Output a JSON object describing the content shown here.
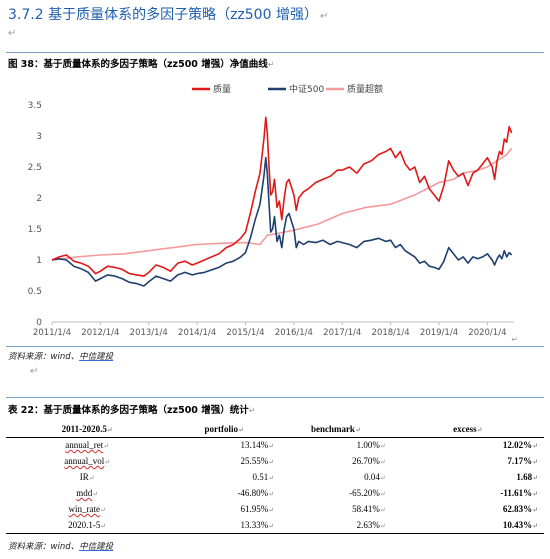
{
  "heading": "3.7.2 基于质量体系的多因子策略（zz500 增强）",
  "para_mark": "↵",
  "figure_caption": "图 38：基于质量体系的多因子策略（zz500 增强）净值曲线",
  "table_caption": "表 22：基于质量体系的多因子策略（zz500 增强）统计",
  "source_text": "资料来源：wind、",
  "source_firm": "中信建投",
  "table": {
    "headers": [
      "2011-2020.5",
      "portfolio",
      "benchmark",
      "excess"
    ],
    "rows": [
      {
        "label": "annual_ret",
        "portfolio": "13.14%",
        "benchmark": "1.00%",
        "excess": "12.02%",
        "wavy": true
      },
      {
        "label": "annual_vol",
        "portfolio": "25.55%",
        "benchmark": "26.70%",
        "excess": "7.17%",
        "wavy": true
      },
      {
        "label": "IR",
        "portfolio": "0.51",
        "benchmark": "0.04",
        "excess": "1.68",
        "wavy": false
      },
      {
        "label": "mdd",
        "portfolio": "-46.80%",
        "benchmark": "-65.20%",
        "excess": "-11.61%",
        "wavy": true
      },
      {
        "label": "win_rate",
        "portfolio": "61.95%",
        "benchmark": "58.41%",
        "excess": "62.83%",
        "wavy": true
      },
      {
        "label": "2020.1-5",
        "portfolio": "13.33%",
        "benchmark": "2.63%",
        "excess": "10.43%",
        "wavy": false
      }
    ]
  },
  "chart_data": {
    "type": "line",
    "ylim": [
      0,
      3.5
    ],
    "yticks": [
      "0",
      "0.5",
      "1",
      "1.5",
      "2",
      "2.5",
      "3",
      "3.5"
    ],
    "xlim": [
      2011.0,
      2020.55
    ],
    "xticks": [
      {
        "label": "2011/1/4",
        "x": 2011.0
      },
      {
        "label": "2012/1/4",
        "x": 2012.0
      },
      {
        "label": "2013/1/4",
        "x": 2013.0
      },
      {
        "label": "2014/1/4",
        "x": 2014.0
      },
      {
        "label": "2015/1/4",
        "x": 2015.0
      },
      {
        "label": "2016/1/4",
        "x": 2016.0
      },
      {
        "label": "2017/1/4",
        "x": 2017.0
      },
      {
        "label": "2018/1/4",
        "x": 2018.0
      },
      {
        "label": "2019/1/4",
        "x": 2019.0
      },
      {
        "label": "2020/1/4",
        "x": 2020.0
      }
    ],
    "legend_position": "top",
    "grid": false,
    "series": [
      {
        "name": "质量",
        "color": "#e01818",
        "x": [
          2011.0,
          2011.15,
          2011.3,
          2011.45,
          2011.6,
          2011.75,
          2011.9,
          2012.0,
          2012.15,
          2012.3,
          2012.45,
          2012.6,
          2012.75,
          2012.9,
          2013.0,
          2013.15,
          2013.3,
          2013.45,
          2013.6,
          2013.75,
          2013.9,
          2014.0,
          2014.15,
          2014.3,
          2014.45,
          2014.6,
          2014.75,
          2014.9,
          2015.0,
          2015.1,
          2015.2,
          2015.3,
          2015.38,
          2015.42,
          2015.45,
          2015.48,
          2015.52,
          2015.56,
          2015.6,
          2015.65,
          2015.7,
          2015.75,
          2015.8,
          2015.85,
          2015.9,
          2016.0,
          2016.05,
          2016.1,
          2016.2,
          2016.3,
          2016.45,
          2016.6,
          2016.75,
          2016.9,
          2017.0,
          2017.15,
          2017.3,
          2017.45,
          2017.6,
          2017.75,
          2017.9,
          2018.0,
          2018.1,
          2018.2,
          2018.3,
          2018.4,
          2018.5,
          2018.6,
          2018.7,
          2018.8,
          2018.9,
          2019.0,
          2019.1,
          2019.2,
          2019.3,
          2019.4,
          2019.5,
          2019.6,
          2019.7,
          2019.8,
          2019.9,
          2020.0,
          2020.1,
          2020.15,
          2020.2,
          2020.25,
          2020.3,
          2020.35,
          2020.4,
          2020.45,
          2020.5
        ],
        "values": [
          1.0,
          1.05,
          1.08,
          0.98,
          0.95,
          0.9,
          0.78,
          0.82,
          0.9,
          0.88,
          0.85,
          0.78,
          0.76,
          0.74,
          0.8,
          0.92,
          0.88,
          0.82,
          0.95,
          0.98,
          0.92,
          0.95,
          1.0,
          1.05,
          1.1,
          1.2,
          1.25,
          1.35,
          1.45,
          1.75,
          2.1,
          2.4,
          2.95,
          3.3,
          3.05,
          2.6,
          2.05,
          2.1,
          2.3,
          1.85,
          1.95,
          1.65,
          2.0,
          2.25,
          2.3,
          2.05,
          1.8,
          2.0,
          2.1,
          2.15,
          2.25,
          2.3,
          2.35,
          2.45,
          2.45,
          2.5,
          2.4,
          2.55,
          2.6,
          2.7,
          2.75,
          2.8,
          2.65,
          2.75,
          2.55,
          2.45,
          2.5,
          2.25,
          2.35,
          2.15,
          2.05,
          1.95,
          2.2,
          2.6,
          2.45,
          2.35,
          2.4,
          2.2,
          2.4,
          2.45,
          2.55,
          2.65,
          2.5,
          2.3,
          2.6,
          2.75,
          2.7,
          2.95,
          2.9,
          3.15,
          3.05
        ]
      },
      {
        "name": "中证500",
        "color": "#1f3f6e",
        "x": [
          2011.0,
          2011.15,
          2011.3,
          2011.45,
          2011.6,
          2011.75,
          2011.9,
          2012.0,
          2012.15,
          2012.3,
          2012.45,
          2012.6,
          2012.75,
          2012.9,
          2013.0,
          2013.15,
          2013.3,
          2013.45,
          2013.6,
          2013.75,
          2013.9,
          2014.0,
          2014.15,
          2014.3,
          2014.45,
          2014.6,
          2014.75,
          2014.9,
          2015.0,
          2015.1,
          2015.2,
          2015.3,
          2015.38,
          2015.42,
          2015.45,
          2015.48,
          2015.52,
          2015.56,
          2015.6,
          2015.65,
          2015.7,
          2015.75,
          2015.8,
          2015.85,
          2015.9,
          2016.0,
          2016.05,
          2016.1,
          2016.2,
          2016.3,
          2016.45,
          2016.6,
          2016.75,
          2016.9,
          2017.0,
          2017.15,
          2017.3,
          2017.45,
          2017.6,
          2017.75,
          2017.9,
          2018.0,
          2018.1,
          2018.2,
          2018.3,
          2018.4,
          2018.5,
          2018.6,
          2018.7,
          2018.8,
          2018.9,
          2019.0,
          2019.1,
          2019.2,
          2019.3,
          2019.4,
          2019.5,
          2019.6,
          2019.7,
          2019.8,
          2019.9,
          2020.0,
          2020.1,
          2020.15,
          2020.2,
          2020.25,
          2020.3,
          2020.35,
          2020.4,
          2020.45,
          2020.5
        ],
        "values": [
          1.0,
          1.02,
          1.0,
          0.9,
          0.86,
          0.8,
          0.66,
          0.7,
          0.76,
          0.74,
          0.7,
          0.64,
          0.62,
          0.58,
          0.65,
          0.74,
          0.7,
          0.66,
          0.76,
          0.8,
          0.76,
          0.78,
          0.8,
          0.84,
          0.88,
          0.95,
          0.98,
          1.05,
          1.12,
          1.35,
          1.65,
          1.9,
          2.35,
          2.65,
          2.4,
          2.0,
          1.45,
          1.5,
          1.7,
          1.3,
          1.4,
          1.2,
          1.5,
          1.7,
          1.75,
          1.5,
          1.2,
          1.3,
          1.25,
          1.3,
          1.28,
          1.32,
          1.25,
          1.3,
          1.28,
          1.25,
          1.2,
          1.3,
          1.32,
          1.35,
          1.3,
          1.32,
          1.2,
          1.25,
          1.15,
          1.1,
          1.05,
          0.95,
          0.98,
          0.9,
          0.88,
          0.85,
          0.98,
          1.2,
          1.1,
          1.0,
          1.05,
          0.95,
          1.05,
          1.02,
          1.05,
          1.1,
          1.0,
          0.92,
          1.02,
          1.08,
          1.02,
          1.15,
          1.05,
          1.12,
          1.08
        ]
      },
      {
        "name": "质量超额",
        "color": "#f49a9a",
        "x": [
          2011.0,
          2011.5,
          2012.0,
          2012.5,
          2013.0,
          2013.5,
          2014.0,
          2014.5,
          2015.0,
          2015.3,
          2015.45,
          2015.6,
          2015.8,
          2016.0,
          2016.5,
          2017.0,
          2017.5,
          2018.0,
          2018.5,
          2019.0,
          2019.3,
          2019.5,
          2019.8,
          2020.0,
          2020.2,
          2020.4,
          2020.5
        ],
        "values": [
          1.0,
          1.05,
          1.08,
          1.1,
          1.15,
          1.2,
          1.25,
          1.27,
          1.28,
          1.25,
          1.4,
          1.42,
          1.45,
          1.48,
          1.58,
          1.75,
          1.85,
          1.9,
          2.05,
          2.25,
          2.3,
          2.4,
          2.45,
          2.5,
          2.6,
          2.7,
          2.8
        ]
      }
    ]
  }
}
